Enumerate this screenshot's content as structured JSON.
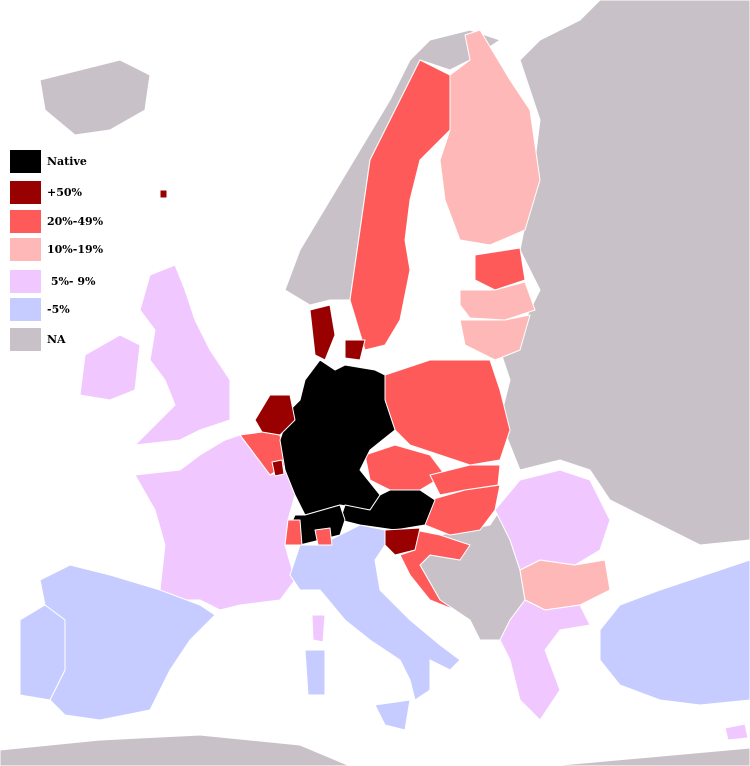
{
  "legend": [
    {
      "label": "Native",
      "color": "#000000"
    },
    {
      "label": "+50%",
      "color": "#990000"
    },
    {
      "label": "20%-49%",
      "color": "#ff5a5a"
    },
    {
      "label": "10%-19%",
      "color": "#ffb8b8"
    },
    {
      "label": " 5%- 9%",
      "color": "#f0c8ff"
    },
    {
      "label": "-5%",
      "color": "#c6ccff"
    },
    {
      "label": "NA",
      "color": "#c8c2c8"
    }
  ],
  "sea_color": "#ffffff"
}
